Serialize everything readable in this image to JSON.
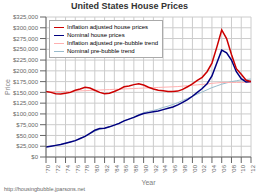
{
  "chart_data": {
    "type": "line",
    "title": "United States House Prices",
    "xlabel": "Year",
    "ylabel": "Price",
    "x": [
      1970,
      1971,
      1972,
      1973,
      1974,
      1975,
      1976,
      1977,
      1978,
      1979,
      1980,
      1981,
      1982,
      1983,
      1984,
      1985,
      1986,
      1987,
      1988,
      1989,
      1990,
      1991,
      1992,
      1993,
      1994,
      1995,
      1996,
      1997,
      1998,
      1999,
      2000,
      2001,
      2002,
      2003,
      2004,
      2005,
      2006,
      2007,
      2008,
      2009,
      2010,
      2011,
      2012
    ],
    "series": [
      {
        "name": "Inflation adjusted house prices",
        "color": "#cc0000",
        "values": [
          152000,
          150000,
          147000,
          146000,
          148000,
          150000,
          155000,
          158000,
          162000,
          160000,
          155000,
          150000,
          147000,
          148000,
          152000,
          157000,
          163000,
          165000,
          168000,
          170000,
          167000,
          162000,
          158000,
          155000,
          154000,
          152000,
          152000,
          153000,
          157000,
          163000,
          170000,
          178000,
          185000,
          198000,
          218000,
          255000,
          295000,
          275000,
          238000,
          205000,
          192000,
          178000,
          175000
        ]
      },
      {
        "name": "Nominal house prices",
        "color": "#000080",
        "values": [
          23000,
          25000,
          27000,
          29000,
          32000,
          35000,
          38000,
          43000,
          48000,
          55000,
          62000,
          66000,
          67000,
          70000,
          74000,
          78000,
          84000,
          88000,
          92000,
          97000,
          101000,
          103000,
          105000,
          107000,
          110000,
          113000,
          116000,
          121000,
          127000,
          133000,
          141000,
          150000,
          159000,
          170000,
          188000,
          218000,
          248000,
          242000,
          225000,
          198000,
          182000,
          174000,
          175000
        ]
      },
      {
        "name": "Inflation adjusted pre-bubble trend",
        "color": "#ffb0b0",
        "values": [
          152000,
          152000,
          152000,
          152000,
          152000,
          152500,
          153000,
          153500,
          154000,
          154500,
          155000,
          155500,
          156000,
          156500,
          157000,
          157500,
          158000,
          158500,
          159000,
          159500,
          160000,
          160500,
          161000,
          161500,
          162000,
          162500,
          163000,
          163500,
          164500,
          165500,
          166500,
          167500,
          168500,
          169500,
          171000,
          172000,
          173000,
          173000,
          173000,
          173000,
          173000,
          173000,
          173000
        ]
      },
      {
        "name": "Nominal pre-bubble trend",
        "color": "#99bbcc",
        "values": [
          23000,
          25000,
          27000,
          29000,
          32000,
          35000,
          38000,
          43000,
          48000,
          54000,
          60000,
          64000,
          67000,
          70000,
          74000,
          79000,
          84000,
          88000,
          93000,
          98000,
          103000,
          106000,
          108000,
          111000,
          115000,
          118000,
          122000,
          126000,
          131000,
          136000,
          141000,
          146000,
          151000,
          156000,
          161000,
          165000,
          169000,
          172000,
          175000,
          177000,
          179000,
          180000,
          181000
        ]
      }
    ],
    "xlim": [
      1970,
      2012
    ],
    "xticks": [
      {
        "value": 1970,
        "label": "'70"
      },
      {
        "value": 1972,
        "label": "'72"
      },
      {
        "value": 1974,
        "label": "'74"
      },
      {
        "value": 1976,
        "label": "'76"
      },
      {
        "value": 1978,
        "label": "'78"
      },
      {
        "value": 1980,
        "label": "'80"
      },
      {
        "value": 1982,
        "label": "'82"
      },
      {
        "value": 1984,
        "label": "'84"
      },
      {
        "value": 1986,
        "label": "'86"
      },
      {
        "value": 1988,
        "label": "'88"
      },
      {
        "value": 1990,
        "label": "'90"
      },
      {
        "value": 1992,
        "label": "'92"
      },
      {
        "value": 1994,
        "label": "'94"
      },
      {
        "value": 1996,
        "label": "'96"
      },
      {
        "value": 1998,
        "label": "'98"
      },
      {
        "value": 2000,
        "label": "'00"
      },
      {
        "value": 2002,
        "label": "'02"
      },
      {
        "value": 2004,
        "label": "'04"
      },
      {
        "value": 2006,
        "label": "'06"
      },
      {
        "value": 2008,
        "label": "'08"
      },
      {
        "value": 2010,
        "label": "'10"
      },
      {
        "value": 2012,
        "label": "'12"
      }
    ],
    "ylim": [
      0,
      325000
    ],
    "yticks": [
      {
        "value": 0,
        "label": "$0"
      },
      {
        "value": 25000,
        "label": "$25,000"
      },
      {
        "value": 50000,
        "label": "$50,000"
      },
      {
        "value": 75000,
        "label": "$75,000"
      },
      {
        "value": 100000,
        "label": "$100,000"
      },
      {
        "value": 125000,
        "label": "$125,000"
      },
      {
        "value": 150000,
        "label": "$150,000"
      },
      {
        "value": 175000,
        "label": "$175,000"
      },
      {
        "value": 200000,
        "label": "$200,000"
      },
      {
        "value": 225000,
        "label": "$225,000"
      },
      {
        "value": 250000,
        "label": "$250,000"
      },
      {
        "value": 275000,
        "label": "$275,000"
      },
      {
        "value": 300000,
        "label": "$300,000"
      },
      {
        "value": 325000,
        "label": "$325,000"
      }
    ],
    "grid": true,
    "legend": "upper left",
    "annotations": [
      "http://housingbubble.jparsons.net"
    ]
  }
}
